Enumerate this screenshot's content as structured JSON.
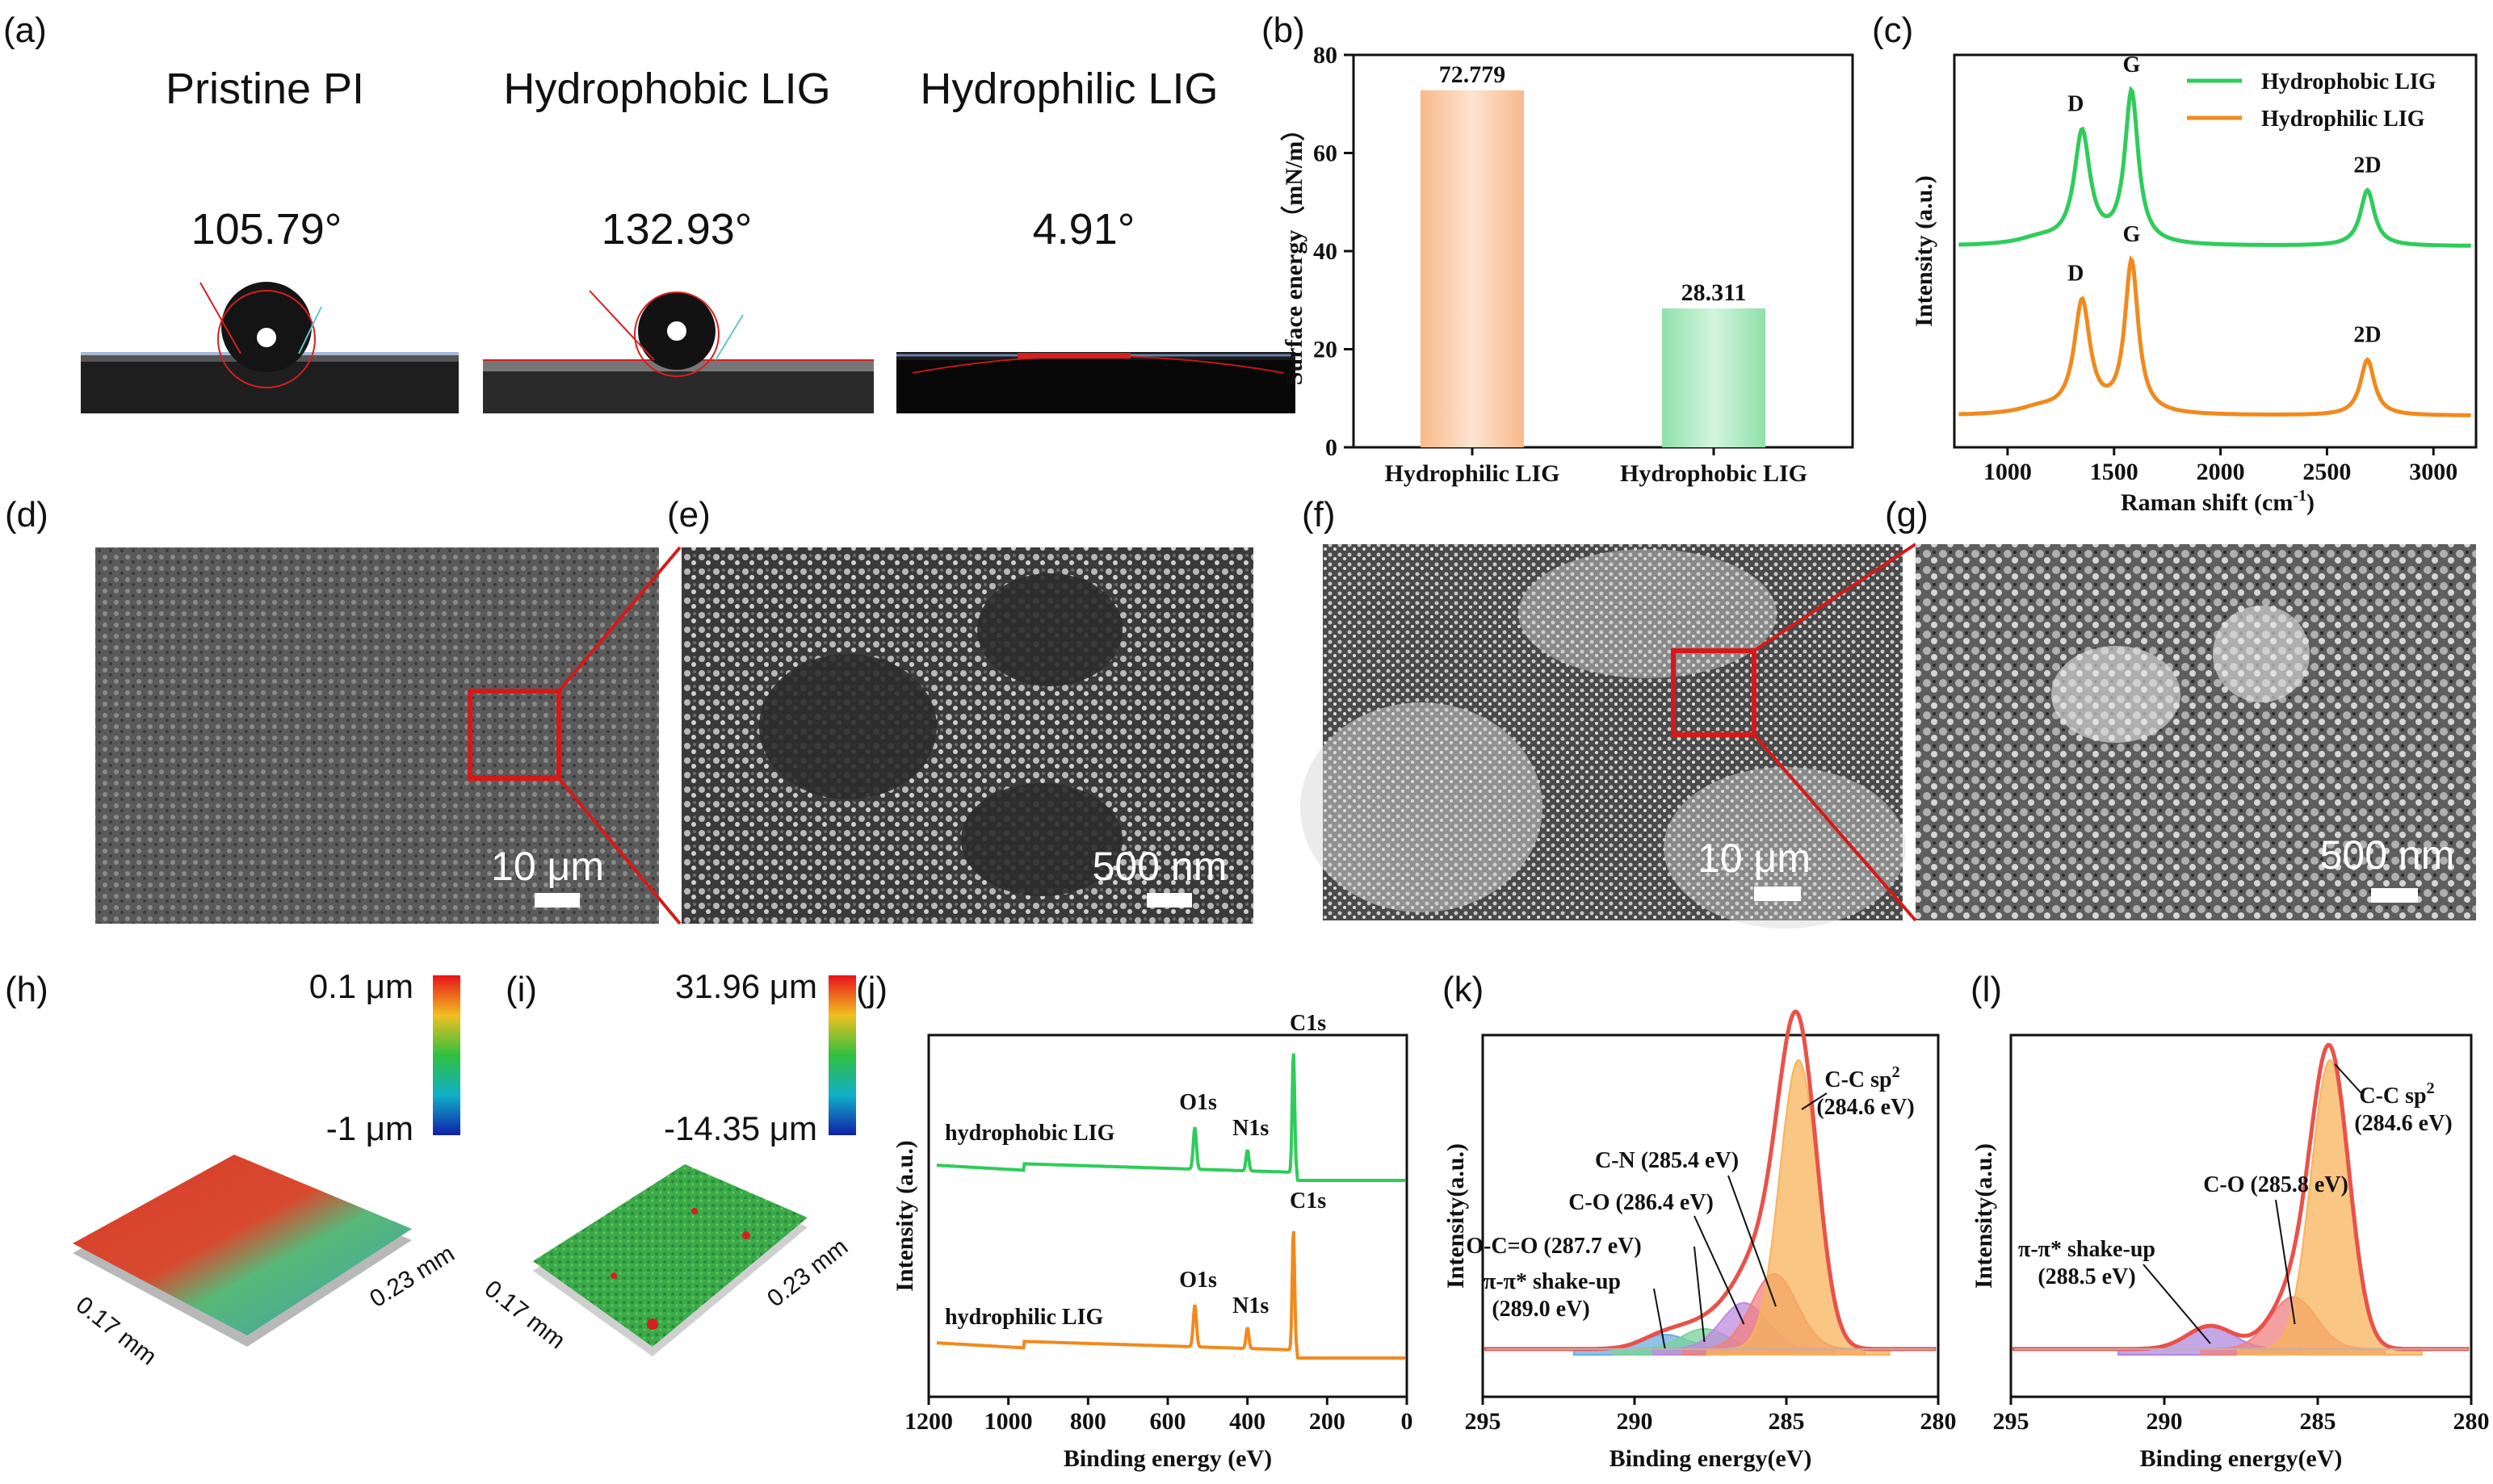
{
  "panel_letters": [
    "(a)",
    "(b)",
    "(c)",
    "(d)",
    "(e)",
    "(f)",
    "(g)",
    "(h)",
    "(i)",
    "(j)",
    "(k)",
    "(l)"
  ],
  "contact_angle": {
    "samples": [
      {
        "name": "Pristine PI",
        "angle": "105.79°"
      },
      {
        "name": "Hydrophobic LIG",
        "angle": "132.93°"
      },
      {
        "name": "Hydrophilic LIG",
        "angle": "4.91°"
      }
    ]
  },
  "sem": {
    "scale_labels": [
      "10 μm",
      "500 nm",
      "10 μm",
      "500 nm"
    ]
  },
  "profile": {
    "h": {
      "max": "0.1 μm",
      "min": "-1 μm",
      "dim_x": "0.17 mm",
      "dim_y": "0.23 mm"
    },
    "i": {
      "max": "31.96 μm",
      "min": "-14.35 μm",
      "dim_x": "0.17 mm",
      "dim_y": "0.23 mm"
    }
  },
  "colors": {
    "green": "#2ecc5a",
    "orange": "#f08a1e",
    "bar_orange": "#f9c9a0",
    "bar_green": "#a6e8bd",
    "fit_red": "#e8524a"
  },
  "chart_data": [
    {
      "id": "b",
      "type": "bar",
      "title": "",
      "xlabel": "",
      "ylabel": "Surface energy（mN/m）",
      "categories": [
        "Hydrophilic LIG",
        "Hydrophobic LIG"
      ],
      "values": [
        72.779,
        28.311
      ],
      "value_labels": [
        "72.779",
        "28.311"
      ],
      "ylim": [
        0,
        80
      ],
      "yticks": [
        0,
        20,
        40,
        60,
        80
      ],
      "ytick_labels": [
        "0",
        "20",
        "40",
        "60",
        "80"
      ]
    },
    {
      "id": "c",
      "type": "line",
      "xlabel": "Raman shift (cm",
      "xlabel_sup": "-1",
      "xlabel_end": ")",
      "ylabel": "Intensity (a.u.)",
      "xlim": [
        750,
        3200
      ],
      "xticks": [
        1000,
        1500,
        2000,
        2500,
        3000
      ],
      "xtick_labels": [
        "1000",
        "1500",
        "2000",
        "2500",
        "3000"
      ],
      "series": [
        {
          "name": "Hydrophobic LIG",
          "peaks": [
            {
              "label": "D",
              "x": 1350
            },
            {
              "label": "G",
              "x": 1582
            },
            {
              "label": "2D",
              "x": 2690
            }
          ]
        },
        {
          "name": "Hydrophilic LIG",
          "peaks": [
            {
              "label": "D",
              "x": 1350
            },
            {
              "label": "G",
              "x": 1582
            },
            {
              "label": "2D",
              "x": 2690
            }
          ]
        }
      ]
    },
    {
      "id": "j",
      "type": "line",
      "xlabel": "Binding energy (eV)",
      "ylabel": "Intensity (a.u.)",
      "xlim": [
        1200,
        0
      ],
      "xticks": [
        1200,
        1000,
        800,
        600,
        400,
        200,
        0
      ],
      "xtick_labels": [
        "1200",
        "1000",
        "800",
        "600",
        "400",
        "200",
        "0"
      ],
      "series": [
        {
          "name": "hydrophobic LIG",
          "peaks": [
            {
              "label": "O1s",
              "x": 532
            },
            {
              "label": "N1s",
              "x": 400
            },
            {
              "label": "C1s",
              "x": 284.6
            }
          ]
        },
        {
          "name": "hydrophilic LIG",
          "peaks": [
            {
              "label": "O1s",
              "x": 532
            },
            {
              "label": "N1s",
              "x": 400
            },
            {
              "label": "C1s",
              "x": 284.6
            }
          ]
        }
      ]
    },
    {
      "id": "k",
      "type": "line",
      "xlabel": "Binding energy(eV)",
      "ylabel": "Intensity(a.u.)",
      "xlim": [
        295,
        280
      ],
      "xticks": [
        295,
        290,
        285,
        280
      ],
      "xtick_labels": [
        "295",
        "290",
        "285",
        "280"
      ],
      "components": [
        {
          "label": "C-C sp",
          "label_sup": "2",
          "label2": "(284.6 eV)",
          "x": 284.6,
          "height": 1.0,
          "color": "#f7b35b"
        },
        {
          "label": "C-N (285.4 eV)",
          "x": 285.4,
          "height": 0.26,
          "color": "#f08080"
        },
        {
          "label": "C-O (286.4 eV)",
          "x": 286.4,
          "height": 0.16,
          "color": "#c08adf"
        },
        {
          "label": "O-C=O (287.7 eV)",
          "x": 287.7,
          "height": 0.07,
          "color": "#7ad19a"
        },
        {
          "label": "π-π* shake-up",
          "label2": "(289.0 eV)",
          "x": 289.0,
          "height": 0.05,
          "color": "#6aaee0"
        }
      ]
    },
    {
      "id": "l",
      "type": "line",
      "xlabel": "Binding energy(eV)",
      "ylabel": "Intensity(a.u.)",
      "xlim": [
        295,
        280
      ],
      "xticks": [
        295,
        290,
        285,
        280
      ],
      "xtick_labels": [
        "295",
        "290",
        "285",
        "280"
      ],
      "components": [
        {
          "label": "C-C sp",
          "label_sup": "2",
          "label2": "(284.6 eV)",
          "x": 284.6,
          "height": 1.0,
          "color": "#f7b35b"
        },
        {
          "label": "C-O (285.8 eV)",
          "x": 285.8,
          "height": 0.18,
          "color": "#f08080"
        },
        {
          "label": "π-π* shake-up",
          "label2": "(288.5 eV)",
          "x": 288.5,
          "height": 0.08,
          "color": "#b08adf"
        }
      ]
    }
  ]
}
